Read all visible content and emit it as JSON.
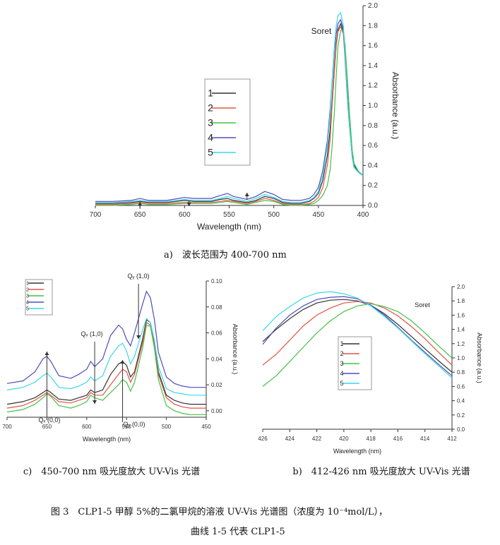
{
  "figure": {
    "caption_line1": "图 3　CLP1-5 甲醇 5%的二氯甲烷的溶液 UV-Vis 光谱图（浓度为 10⁻⁴mol/L），",
    "caption_line2": "曲线 1-5 代表 CLP1-5"
  },
  "chart_data": [
    {
      "id": "a",
      "type": "line",
      "caption": "a)　波长范围为 400-700 nm",
      "xlabel": "Wavelength (nm)",
      "ylabel": "Absorbance (a.u.)",
      "xlim": [
        700,
        400
      ],
      "ylim": [
        0,
        2.0
      ],
      "xticks": [
        "700",
        "650",
        "600",
        "550",
        "500",
        "450",
        "400"
      ],
      "yticks": [
        "0.0",
        "0.2",
        "0.4",
        "0.6",
        "0.8",
        "1.0",
        "1.2",
        "1.4",
        "1.6",
        "1.8",
        "2.0"
      ],
      "annotations": [
        "Soret"
      ],
      "legend": "left",
      "x": [
        700,
        680,
        660,
        650,
        640,
        620,
        600,
        590,
        570,
        560,
        552,
        545,
        530,
        520,
        510,
        500,
        490,
        480,
        470,
        460,
        455,
        450,
        445,
        440,
        437,
        435,
        432,
        430,
        428,
        425,
        422,
        420,
        417,
        415,
        412,
        410,
        405,
        400
      ],
      "series": [
        {
          "name": "1",
          "color": "#333333",
          "values": [
            0.02,
            0.02,
            0.03,
            0.04,
            0.03,
            0.03,
            0.05,
            0.04,
            0.04,
            0.06,
            0.07,
            0.05,
            0.03,
            0.05,
            0.09,
            0.07,
            0.03,
            0.02,
            0.02,
            0.04,
            0.07,
            0.12,
            0.25,
            0.5,
            0.75,
            1.0,
            1.4,
            1.62,
            1.76,
            1.82,
            1.74,
            1.5,
            1.05,
            0.8,
            0.5,
            0.4,
            0.34,
            0.3
          ]
        },
        {
          "name": "2",
          "color": "#e0534a",
          "values": [
            0.01,
            0.01,
            0.02,
            0.03,
            0.02,
            0.02,
            0.03,
            0.03,
            0.03,
            0.04,
            0.05,
            0.04,
            0.02,
            0.04,
            0.07,
            0.05,
            0.02,
            0.01,
            0.01,
            0.02,
            0.04,
            0.08,
            0.18,
            0.4,
            0.65,
            0.95,
            1.35,
            1.6,
            1.74,
            1.79,
            1.72,
            1.45,
            1.0,
            0.78,
            0.48,
            0.38,
            0.33,
            0.3
          ]
        },
        {
          "name": "3",
          "color": "#44c144",
          "values": [
            0.0,
            0.0,
            0.01,
            0.02,
            0.01,
            0.01,
            0.02,
            0.02,
            0.02,
            0.03,
            0.04,
            0.03,
            0.01,
            0.03,
            0.05,
            0.04,
            0.01,
            0.0,
            0.0,
            0.01,
            0.02,
            0.05,
            0.1,
            0.2,
            0.35,
            0.55,
            0.95,
            1.3,
            1.6,
            1.75,
            1.76,
            1.6,
            1.2,
            0.9,
            0.55,
            0.42,
            0.34,
            0.3
          ]
        },
        {
          "name": "4",
          "color": "#4d4dbd",
          "values": [
            0.04,
            0.04,
            0.05,
            0.07,
            0.05,
            0.05,
            0.08,
            0.07,
            0.07,
            0.1,
            0.12,
            0.09,
            0.06,
            0.09,
            0.14,
            0.11,
            0.06,
            0.05,
            0.05,
            0.07,
            0.11,
            0.18,
            0.35,
            0.65,
            0.95,
            1.2,
            1.55,
            1.72,
            1.82,
            1.86,
            1.76,
            1.48,
            1.02,
            0.78,
            0.48,
            0.38,
            0.33,
            0.3
          ]
        },
        {
          "name": "5",
          "color": "#38d8e8",
          "values": [
            0.03,
            0.03,
            0.04,
            0.05,
            0.04,
            0.04,
            0.06,
            0.05,
            0.05,
            0.07,
            0.09,
            0.07,
            0.04,
            0.07,
            0.11,
            0.08,
            0.04,
            0.03,
            0.03,
            0.05,
            0.08,
            0.14,
            0.3,
            0.6,
            0.9,
            1.2,
            1.6,
            1.8,
            1.9,
            1.93,
            1.8,
            1.5,
            1.02,
            0.78,
            0.48,
            0.38,
            0.33,
            0.3
          ]
        }
      ]
    },
    {
      "id": "b",
      "type": "line",
      "caption": "b)　412-426 nm 吸光度放大 UV-Vis 光谱",
      "xlabel": "Wavelength (nm)",
      "ylabel": "Absorbance (a.u.)",
      "xlim": [
        426,
        412
      ],
      "ylim": [
        0,
        2.0
      ],
      "xticks": [
        "426",
        "424",
        "422",
        "420",
        "418",
        "416",
        "414",
        "412"
      ],
      "yticks": [
        "0.0",
        "0.2",
        "0.4",
        "0.6",
        "0.8",
        "1.0",
        "1.2",
        "1.4",
        "1.6",
        "1.8",
        "2.0"
      ],
      "annotations": [
        "Soret"
      ],
      "legend": "right",
      "x": [
        426,
        425,
        424,
        423,
        422,
        421,
        420,
        419,
        418,
        417,
        416,
        415,
        414,
        413,
        412
      ],
      "series": [
        {
          "name": "1",
          "color": "#333333",
          "values": [
            1.23,
            1.4,
            1.55,
            1.68,
            1.77,
            1.81,
            1.82,
            1.8,
            1.74,
            1.62,
            1.47,
            1.3,
            1.13,
            0.96,
            0.8
          ]
        },
        {
          "name": "2",
          "color": "#e0534a",
          "values": [
            0.9,
            1.05,
            1.25,
            1.45,
            1.6,
            1.7,
            1.77,
            1.79,
            1.77,
            1.7,
            1.59,
            1.44,
            1.27,
            1.08,
            0.9
          ]
        },
        {
          "name": "3",
          "color": "#44c144",
          "values": [
            0.6,
            0.75,
            0.95,
            1.15,
            1.35,
            1.52,
            1.65,
            1.73,
            1.76,
            1.72,
            1.65,
            1.52,
            1.35,
            1.17,
            1.0
          ]
        },
        {
          "name": "4",
          "color": "#4d4dbd",
          "values": [
            1.19,
            1.42,
            1.6,
            1.73,
            1.82,
            1.85,
            1.86,
            1.83,
            1.74,
            1.6,
            1.43,
            1.25,
            1.08,
            0.91,
            0.75
          ]
        },
        {
          "name": "5",
          "color": "#38d8e8",
          "values": [
            1.38,
            1.58,
            1.72,
            1.84,
            1.91,
            1.93,
            1.9,
            1.84,
            1.73,
            1.58,
            1.42,
            1.24,
            1.06,
            0.89,
            0.72
          ]
        }
      ]
    },
    {
      "id": "c",
      "type": "line",
      "caption": "c)　450-700 nm 吸光度放大 UV-Vis 光谱",
      "xlabel": "Wavelength (nm)",
      "ylabel": "Absorbance (a.u.)",
      "xlim": [
        700,
        450
      ],
      "ylim": [
        -0.005,
        0.1
      ],
      "xticks": [
        "700",
        "650",
        "600",
        "550",
        "500",
        "450"
      ],
      "yticks": [
        "0.00",
        "0.02",
        "0.04",
        "0.06",
        "0.08",
        "0.10"
      ],
      "annotations": [
        "Qᵧ (1,0)",
        "Qₓ (1,0)",
        "Qₓ (0,0)",
        "Qᵧ (0,0)"
      ],
      "legend": "top-left",
      "x": [
        700,
        680,
        665,
        655,
        650,
        645,
        635,
        620,
        610,
        600,
        595,
        590,
        580,
        570,
        560,
        555,
        550,
        545,
        540,
        530,
        525,
        520,
        515,
        510,
        500,
        490,
        480,
        470,
        460,
        450
      ],
      "series": [
        {
          "name": "1",
          "color": "#333333",
          "values": [
            0.005,
            0.007,
            0.01,
            0.014,
            0.016,
            0.014,
            0.009,
            0.008,
            0.01,
            0.012,
            0.016,
            0.014,
            0.016,
            0.028,
            0.036,
            0.038,
            0.035,
            0.026,
            0.03,
            0.055,
            0.07,
            0.068,
            0.052,
            0.03,
            0.012,
            0.008,
            0.006,
            0.005,
            0.005,
            0.005
          ]
        },
        {
          "name": "2",
          "color": "#e0534a",
          "values": [
            0.002,
            0.004,
            0.008,
            0.012,
            0.014,
            0.012,
            0.007,
            0.006,
            0.008,
            0.01,
            0.014,
            0.012,
            0.012,
            0.02,
            0.028,
            0.032,
            0.03,
            0.022,
            0.028,
            0.052,
            0.068,
            0.066,
            0.05,
            0.028,
            0.01,
            0.005,
            0.003,
            0.002,
            0.002,
            0.002
          ]
        },
        {
          "name": "3",
          "color": "#44c144",
          "values": [
            -0.001,
            0.001,
            0.005,
            0.01,
            0.013,
            0.011,
            0.004,
            0.002,
            0.004,
            0.007,
            0.012,
            0.01,
            0.008,
            0.014,
            0.02,
            0.024,
            0.022,
            0.015,
            0.022,
            0.048,
            0.066,
            0.065,
            0.048,
            0.024,
            0.004,
            0.0,
            -0.002,
            -0.003,
            -0.003,
            -0.003
          ]
        },
        {
          "name": "4",
          "color": "#4d4dbd",
          "values": [
            0.021,
            0.023,
            0.03,
            0.04,
            0.042,
            0.038,
            0.027,
            0.025,
            0.028,
            0.032,
            0.038,
            0.034,
            0.04,
            0.058,
            0.066,
            0.063,
            0.055,
            0.05,
            0.06,
            0.082,
            0.092,
            0.087,
            0.07,
            0.045,
            0.026,
            0.021,
            0.019,
            0.018,
            0.018,
            0.018
          ]
        },
        {
          "name": "5",
          "color": "#38d8e8",
          "values": [
            0.016,
            0.018,
            0.022,
            0.027,
            0.029,
            0.026,
            0.018,
            0.017,
            0.019,
            0.022,
            0.026,
            0.023,
            0.027,
            0.042,
            0.05,
            0.052,
            0.046,
            0.036,
            0.042,
            0.062,
            0.071,
            0.068,
            0.054,
            0.034,
            0.017,
            0.014,
            0.013,
            0.012,
            0.012,
            0.012
          ]
        }
      ]
    }
  ]
}
